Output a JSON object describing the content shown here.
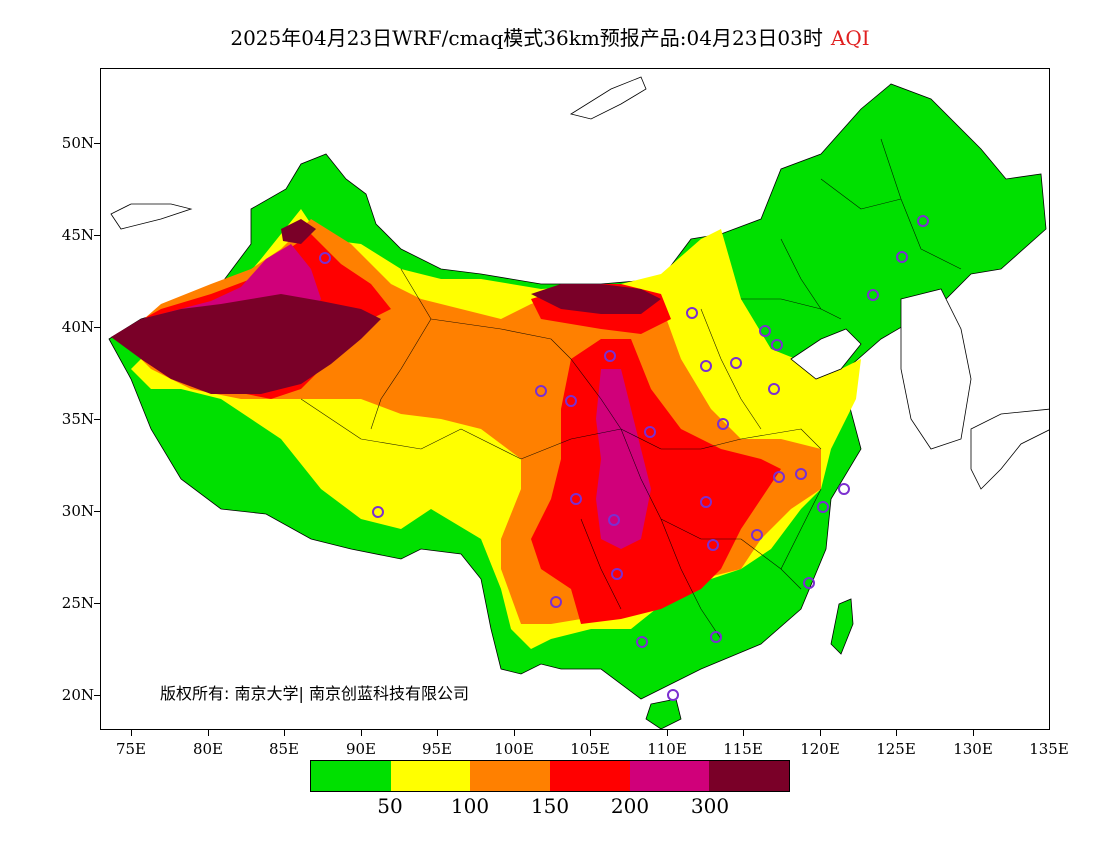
{
  "title": {
    "main": "2025年04月23日WRF/cmaq模式36km预报产品:04月23日03时",
    "variable": "AQI",
    "variable_color": "#e02020"
  },
  "map": {
    "type": "air-quality forecast map",
    "region": "China",
    "lat_labels": [
      "50N",
      "45N",
      "40N",
      "35N",
      "30N",
      "25N",
      "20N"
    ],
    "lon_labels": [
      "75E",
      "80E",
      "85E",
      "90E",
      "95E",
      "100E",
      "105E",
      "110E",
      "115E",
      "120E",
      "125E",
      "130E",
      "135E"
    ],
    "station_marker": "circle-icon",
    "station_color": "#7b2fd0"
  },
  "copyright": "版权所有: 南京大学| 南京创蓝科技有限公司",
  "legend": {
    "colors": [
      "#00e000",
      "#ffff00",
      "#ff8000",
      "#ff0000",
      "#d0007a",
      "#7a0028"
    ],
    "labels": [
      "50",
      "100",
      "150",
      "200",
      "300"
    ]
  }
}
